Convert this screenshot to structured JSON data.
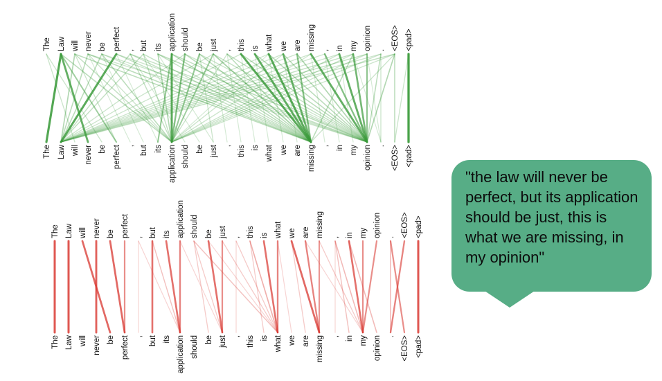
{
  "tokens": [
    "The",
    "Law",
    "will",
    "never",
    "be",
    "perfect",
    ",",
    "but",
    "its",
    "application",
    "should",
    "be",
    "just",
    ",",
    "this",
    "is",
    "what",
    "we",
    "are",
    "missing",
    ",",
    "in",
    "my",
    "opinion",
    ".",
    "<EOS>",
    "<pad>"
  ],
  "colors": {
    "green": "#3a9a3a",
    "red": "#d8352e",
    "bubble": "#57ad86"
  },
  "attention_top": [
    [
      1,
      0,
      0.9
    ],
    [
      5,
      1,
      0.85
    ],
    [
      1,
      3,
      0.8
    ],
    [
      1,
      5,
      0.45
    ],
    [
      2,
      1,
      0.35
    ],
    [
      3,
      1,
      0.3
    ],
    [
      4,
      1,
      0.3
    ],
    [
      6,
      1,
      0.25
    ],
    [
      7,
      1,
      0.25
    ],
    [
      9,
      8,
      0.5
    ],
    [
      9,
      9,
      0.85
    ],
    [
      10,
      9,
      0.6
    ],
    [
      11,
      9,
      0.5
    ],
    [
      12,
      9,
      0.45
    ],
    [
      4,
      9,
      0.3
    ],
    [
      6,
      9,
      0.25
    ],
    [
      7,
      9,
      0.25
    ],
    [
      8,
      9,
      0.35
    ],
    [
      13,
      9,
      0.2
    ],
    [
      1,
      9,
      0.3
    ],
    [
      2,
      9,
      0.25
    ],
    [
      3,
      9,
      0.2
    ],
    [
      14,
      19,
      0.85
    ],
    [
      15,
      19,
      0.8
    ],
    [
      16,
      19,
      0.85
    ],
    [
      17,
      19,
      0.75
    ],
    [
      18,
      19,
      0.6
    ],
    [
      12,
      19,
      0.4
    ],
    [
      13,
      19,
      0.3
    ],
    [
      11,
      19,
      0.3
    ],
    [
      10,
      19,
      0.3
    ],
    [
      9,
      19,
      0.3
    ],
    [
      8,
      19,
      0.25
    ],
    [
      7,
      19,
      0.25
    ],
    [
      6,
      19,
      0.25
    ],
    [
      5,
      19,
      0.25
    ],
    [
      4,
      19,
      0.2
    ],
    [
      3,
      19,
      0.3
    ],
    [
      2,
      19,
      0.3
    ],
    [
      19,
      23,
      0.8
    ],
    [
      20,
      23,
      0.6
    ],
    [
      21,
      23,
      0.8
    ],
    [
      22,
      23,
      0.7
    ],
    [
      23,
      23,
      0.55
    ],
    [
      18,
      23,
      0.35
    ],
    [
      17,
      23,
      0.3
    ],
    [
      16,
      23,
      0.3
    ],
    [
      15,
      23,
      0.3
    ],
    [
      14,
      23,
      0.3
    ],
    [
      13,
      23,
      0.25
    ],
    [
      12,
      23,
      0.25
    ],
    [
      11,
      23,
      0.2
    ],
    [
      10,
      23,
      0.2
    ],
    [
      9,
      23,
      0.25
    ],
    [
      8,
      23,
      0.3
    ],
    [
      6,
      23,
      0.25
    ],
    [
      5,
      23,
      0.2
    ],
    [
      4,
      23,
      0.2
    ],
    [
      3,
      23,
      0.2
    ],
    [
      25,
      23,
      0.35
    ],
    [
      24,
      23,
      0.3
    ],
    [
      22,
      19,
      0.3
    ],
    [
      25,
      19,
      0.2
    ],
    [
      25,
      1,
      0.25
    ],
    [
      24,
      1,
      0.2
    ],
    [
      23,
      1,
      0.25
    ],
    [
      22,
      1,
      0.25
    ],
    [
      21,
      1,
      0.2
    ],
    [
      20,
      1,
      0.2
    ],
    [
      19,
      1,
      0.2
    ],
    [
      18,
      1,
      0.2
    ],
    [
      17,
      1,
      0.2
    ],
    [
      16,
      1,
      0.2
    ],
    [
      14,
      1,
      0.2
    ],
    [
      12,
      1,
      0.2
    ],
    [
      10,
      1,
      0.2
    ],
    [
      25,
      9,
      0.2
    ],
    [
      24,
      9,
      0.2
    ],
    [
      23,
      9,
      0.2
    ],
    [
      22,
      9,
      0.2
    ],
    [
      21,
      9,
      0.2
    ],
    [
      19,
      9,
      0.2
    ],
    [
      17,
      9,
      0.2
    ],
    [
      16,
      9,
      0.15
    ],
    [
      26,
      26,
      0.95
    ],
    [
      25,
      25,
      0.3
    ],
    [
      24,
      24,
      0.2
    ],
    [
      26,
      25,
      0.2
    ],
    [
      0,
      2,
      0.2
    ],
    [
      0,
      4,
      0.2
    ],
    [
      2,
      5,
      0.2
    ],
    [
      3,
      6,
      0.15
    ],
    [
      4,
      7,
      0.15
    ],
    [
      5,
      8,
      0.15
    ],
    [
      6,
      10,
      0.15
    ],
    [
      7,
      11,
      0.15
    ],
    [
      8,
      12,
      0.15
    ],
    [
      11,
      12,
      0.2
    ],
    [
      12,
      13,
      0.15
    ],
    [
      13,
      14,
      0.15
    ],
    [
      14,
      15,
      0.15
    ],
    [
      15,
      16,
      0.15
    ],
    [
      16,
      17,
      0.15
    ],
    [
      17,
      18,
      0.15
    ],
    [
      19,
      20,
      0.15
    ],
    [
      20,
      21,
      0.15
    ],
    [
      21,
      22,
      0.15
    ],
    [
      22,
      24,
      0.15
    ],
    [
      23,
      24,
      0.15
    ]
  ],
  "attention_bottom": [
    [
      0,
      0,
      0.85
    ],
    [
      1,
      1,
      0.85
    ],
    [
      2,
      4,
      0.75
    ],
    [
      3,
      3,
      0.8
    ],
    [
      4,
      5,
      0.75
    ],
    [
      5,
      5,
      0.55
    ],
    [
      7,
      7,
      0.7
    ],
    [
      8,
      9,
      0.7
    ],
    [
      9,
      9,
      0.6
    ],
    [
      7,
      9,
      0.25
    ],
    [
      10,
      11,
      0.2
    ],
    [
      10,
      12,
      0.2
    ],
    [
      11,
      12,
      0.7
    ],
    [
      12,
      12,
      0.55
    ],
    [
      10,
      16,
      0.25
    ],
    [
      14,
      16,
      0.35
    ],
    [
      15,
      16,
      0.7
    ],
    [
      16,
      16,
      0.6
    ],
    [
      14,
      15,
      0.2
    ],
    [
      13,
      16,
      0.2
    ],
    [
      17,
      19,
      0.75
    ],
    [
      18,
      19,
      0.6
    ],
    [
      19,
      19,
      0.5
    ],
    [
      17,
      18,
      0.2
    ],
    [
      21,
      22,
      0.7
    ],
    [
      22,
      22,
      0.55
    ],
    [
      23,
      22,
      0.55
    ],
    [
      20,
      22,
      0.3
    ],
    [
      20,
      21,
      0.25
    ],
    [
      21,
      23,
      0.3
    ],
    [
      19,
      22,
      0.2
    ],
    [
      24,
      25,
      0.55
    ],
    [
      25,
      24,
      0.6
    ],
    [
      24,
      24,
      0.3
    ],
    [
      26,
      26,
      0.85
    ],
    [
      6,
      6,
      0.15
    ],
    [
      13,
      13,
      0.15
    ],
    [
      20,
      20,
      0.15
    ],
    [
      12,
      16,
      0.2
    ],
    [
      11,
      16,
      0.15
    ],
    [
      16,
      17,
      0.15
    ],
    [
      18,
      22,
      0.15
    ],
    [
      9,
      12,
      0.15
    ],
    [
      6,
      9,
      0.15
    ]
  ],
  "bubble": {
    "text": "\"the law will never be perfect, but its application should be just, this is what we are missing, in my opinion\""
  }
}
